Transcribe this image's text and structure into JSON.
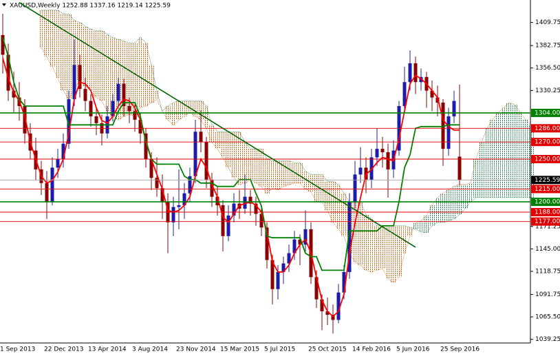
{
  "chart_data": {
    "type": "candlestick",
    "header": "XAUUSD,Weekly  1252.88 1337.16 1219.14 1225.59",
    "categories": [
      "1 Sep 2013",
      null,
      null,
      null,
      null,
      null,
      null,
      null,
      "22 Dec 2013",
      null,
      null,
      null,
      null,
      null,
      null,
      null,
      "13 Apr 2014",
      null,
      null,
      null,
      null,
      null,
      null,
      null,
      "3 Aug 2014",
      null,
      null,
      null,
      null,
      null,
      null,
      null,
      "23 Nov 2014",
      null,
      null,
      null,
      null,
      null,
      null,
      null,
      "15 Mar 2015",
      null,
      null,
      null,
      null,
      null,
      null,
      null,
      "5 Jul 2015",
      null,
      null,
      null,
      null,
      null,
      null,
      null,
      "25 Oct 2015",
      null,
      null,
      null,
      null,
      null,
      null,
      null,
      "14 Feb 2016",
      null,
      null,
      null,
      null,
      null,
      null,
      null,
      "5 Jun 2016",
      null,
      null,
      null,
      null,
      null,
      null,
      null,
      "25 Sep 2016",
      null,
      null,
      null,
      null,
      null,
      null,
      null,
      null,
      null,
      null,
      null,
      null,
      null,
      null,
      null,
      null
    ],
    "ohlc": [
      [
        1395,
        1420,
        1350,
        1372
      ],
      [
        1372,
        1385,
        1318,
        1330
      ],
      [
        1330,
        1352,
        1305,
        1322
      ],
      [
        1322,
        1340,
        1295,
        1312
      ],
      [
        1312,
        1320,
        1268,
        1280
      ],
      [
        1280,
        1292,
        1250,
        1260
      ],
      [
        1260,
        1275,
        1225,
        1238
      ],
      [
        1238,
        1248,
        1208,
        1222
      ],
      [
        1222,
        1236,
        1180,
        1200
      ],
      [
        1200,
        1252,
        1196,
        1240
      ],
      [
        1240,
        1262,
        1228,
        1250
      ],
      [
        1250,
        1280,
        1240,
        1268
      ],
      [
        1268,
        1330,
        1262,
        1320
      ],
      [
        1320,
        1390,
        1312,
        1360
      ],
      [
        1360,
        1372,
        1322,
        1332
      ],
      [
        1332,
        1345,
        1306,
        1318
      ],
      [
        1318,
        1326,
        1288,
        1300
      ],
      [
        1300,
        1310,
        1278,
        1292
      ],
      [
        1292,
        1302,
        1266,
        1280
      ],
      [
        1280,
        1312,
        1274,
        1300
      ],
      [
        1300,
        1326,
        1294,
        1318
      ],
      [
        1318,
        1345,
        1312,
        1338
      ],
      [
        1338,
        1344,
        1300,
        1312
      ],
      [
        1312,
        1322,
        1292,
        1306
      ],
      [
        1306,
        1314,
        1282,
        1296
      ],
      [
        1296,
        1304,
        1268,
        1280
      ],
      [
        1280,
        1286,
        1240,
        1250
      ],
      [
        1250,
        1258,
        1214,
        1228
      ],
      [
        1228,
        1252,
        1206,
        1216
      ],
      [
        1216,
        1232,
        1180,
        1200
      ],
      [
        1200,
        1210,
        1140,
        1176
      ],
      [
        1176,
        1206,
        1160,
        1194
      ],
      [
        1194,
        1238,
        1168,
        1196
      ],
      [
        1196,
        1222,
        1180,
        1210
      ],
      [
        1210,
        1240,
        1200,
        1230
      ],
      [
        1230,
        1296,
        1222,
        1282
      ],
      [
        1282,
        1307,
        1258,
        1270
      ],
      [
        1270,
        1276,
        1216,
        1226
      ],
      [
        1226,
        1234,
        1194,
        1206
      ],
      [
        1206,
        1218,
        1184,
        1196
      ],
      [
        1196,
        1202,
        1142,
        1160
      ],
      [
        1160,
        1196,
        1154,
        1184
      ],
      [
        1184,
        1210,
        1176,
        1198
      ],
      [
        1198,
        1214,
        1180,
        1192
      ],
      [
        1192,
        1232,
        1186,
        1206
      ],
      [
        1206,
        1214,
        1184,
        1198
      ],
      [
        1198,
        1206,
        1172,
        1186
      ],
      [
        1186,
        1194,
        1160,
        1170
      ],
      [
        1170,
        1176,
        1122,
        1132
      ],
      [
        1132,
        1138,
        1080,
        1098
      ],
      [
        1098,
        1126,
        1086,
        1118
      ],
      [
        1118,
        1136,
        1104,
        1128
      ],
      [
        1128,
        1150,
        1118,
        1140
      ],
      [
        1140,
        1166,
        1132,
        1156
      ],
      [
        1156,
        1162,
        1126,
        1150
      ],
      [
        1150,
        1190,
        1142,
        1168
      ],
      [
        1168,
        1176,
        1104,
        1112
      ],
      [
        1112,
        1120,
        1076,
        1086
      ],
      [
        1086,
        1092,
        1050,
        1072
      ],
      [
        1072,
        1088,
        1056,
        1068
      ],
      [
        1068,
        1080,
        1046,
        1062
      ],
      [
        1062,
        1104,
        1058,
        1094
      ],
      [
        1094,
        1126,
        1086,
        1118
      ],
      [
        1118,
        1210,
        1110,
        1200
      ],
      [
        1200,
        1248,
        1192,
        1232
      ],
      [
        1232,
        1264,
        1222,
        1240
      ],
      [
        1240,
        1252,
        1210,
        1226
      ],
      [
        1226,
        1262,
        1216,
        1252
      ],
      [
        1252,
        1286,
        1242,
        1262
      ],
      [
        1262,
        1276,
        1240,
        1258
      ],
      [
        1258,
        1268,
        1205,
        1238
      ],
      [
        1238,
        1272,
        1228,
        1260
      ],
      [
        1260,
        1318,
        1254,
        1312
      ],
      [
        1312,
        1358,
        1306,
        1340
      ],
      [
        1340,
        1377,
        1330,
        1362
      ],
      [
        1362,
        1370,
        1326,
        1340
      ],
      [
        1340,
        1356,
        1330,
        1346
      ],
      [
        1346,
        1352,
        1310,
        1330
      ],
      [
        1330,
        1342,
        1306,
        1322
      ],
      [
        1322,
        1336,
        1300,
        1316
      ],
      [
        1316,
        1320,
        1242,
        1262
      ],
      [
        1262,
        1310,
        1254,
        1300
      ],
      [
        1300,
        1330,
        1292,
        1318
      ],
      [
        1252.88,
        1337.16,
        1219.14,
        1225.59
      ],
      null,
      null,
      null,
      null,
      null,
      null,
      null,
      null,
      null,
      null,
      null,
      null,
      null
    ],
    "up_color": "#1c1ca8",
    "down_color": "#8b0000",
    "overlays": [
      {
        "color": "#ff0000",
        "values": [
          1368,
          1345,
          1328,
          1318,
          1300,
          1270,
          1250,
          1230,
          1222,
          1225,
          1235,
          1250,
          1280,
          1320,
          1340,
          1338,
          1330,
          1310,
          1295,
          1292,
          1300,
          1312,
          1320,
          1318,
          1310,
          1296,
          1272,
          1250,
          1232,
          1215,
          1190,
          1188,
          1190,
          1196,
          1206,
          1230,
          1250,
          1240,
          1220,
          1206,
          1182,
          1176,
          1186,
          1196,
          1198,
          1200,
          1196,
          1188,
          1165,
          1130,
          1118,
          1118,
          1126,
          1140,
          1150,
          1156,
          1140,
          1112,
          1085,
          1072,
          1066,
          1072,
          1092,
          1140,
          1175,
          1205,
          1232,
          1238,
          1246,
          1252,
          1250,
          1248,
          1274,
          1306,
          1338,
          1348,
          1344,
          1338,
          1330,
          1322,
          1296,
          1288,
          1284,
          1284,
          null,
          null,
          null,
          null,
          null,
          null,
          null,
          null,
          null,
          null,
          null,
          null,
          null
        ]
      },
      {
        "color": "#008000",
        "values": [
          1392,
          1370,
          1340,
          1320,
          1312,
          1312,
          1312,
          1312,
          1312,
          1312,
          1312,
          1312,
          1290,
          1290,
          1290,
          1290,
          1290,
          1290,
          1290,
          1290,
          1290,
          1306,
          1316,
          1316,
          1316,
          1300,
          1270,
          1250,
          1244,
          1244,
          1244,
          1244,
          1244,
          1230,
          1226,
          1226,
          1222,
          1222,
          1222,
          1218,
          1218,
          1218,
          1218,
          1226,
          1226,
          1226,
          1210,
          1195,
          1160,
          1158,
          1158,
          1158,
          1158,
          1158,
          1158,
          1140,
          1136,
          1136,
          1120,
          1120,
          1120,
          1120,
          1120,
          1166,
          1166,
          1166,
          1166,
          1166,
          1166,
          1172,
          1172,
          1172,
          1200,
          1240,
          1255,
          1286,
          1288,
          1288,
          1288,
          1288,
          1288,
          1290,
          1290,
          1290,
          null,
          null,
          null,
          null,
          null,
          null,
          null,
          null,
          null,
          null,
          null,
          null,
          null
        ]
      }
    ],
    "cloud": {
      "up_color": "#2e8b57",
      "down_color": "#d2691e",
      "span_a": [
        null,
        null,
        null,
        null,
        null,
        null,
        null,
        1380,
        1370,
        1358,
        1345,
        1330,
        1320,
        1332,
        1342,
        1335,
        1330,
        1322,
        1318,
        1306,
        1300,
        1296,
        1300,
        1302,
        1300,
        1310,
        1312,
        1316,
        1320,
        1306,
        1296,
        1290,
        1296,
        1300,
        1305,
        1300,
        1296,
        1286,
        1270,
        1262,
        1252,
        1240,
        1228,
        1220,
        1222,
        1226,
        1222,
        1218,
        1210,
        1216,
        1214,
        1218,
        1220,
        1222,
        1222,
        1215,
        1212,
        1200,
        1200,
        1190,
        1176,
        1168,
        1160,
        1140,
        1130,
        1126,
        1120,
        1118,
        1120,
        1122,
        1110,
        1106,
        1112,
        1140,
        1160,
        1175,
        1178,
        1184,
        1196,
        1205,
        1210,
        1214,
        1218,
        1220,
        1220,
        1222,
        1250,
        1270,
        1286,
        1296,
        1304,
        1310,
        1316,
        1314,
        1305,
        1296,
        1290
      ],
      "span_b": [
        null,
        null,
        null,
        null,
        null,
        null,
        null,
        1424,
        1424,
        1424,
        1424,
        1420,
        1420,
        1412,
        1410,
        1405,
        1402,
        1400,
        1400,
        1396,
        1392,
        1390,
        1388,
        1386,
        1386,
        1392,
        1386,
        1360,
        1330,
        1306,
        1312,
        1316,
        1318,
        1318,
        1318,
        1318,
        1318,
        1312,
        1290,
        1282,
        1282,
        1282,
        1282,
        1282,
        1270,
        1262,
        1262,
        1262,
        1250,
        1248,
        1248,
        1248,
        1248,
        1246,
        1246,
        1236,
        1232,
        1232,
        1232,
        1224,
        1224,
        1220,
        1210,
        1200,
        1200,
        1200,
        1185,
        1180,
        1172,
        1172,
        1172,
        1172,
        1172,
        1172,
        1170,
        1168,
        1165,
        1164,
        1172,
        1176,
        1176,
        1178,
        1180,
        1185,
        1192,
        1200,
        1205,
        1205,
        1205,
        1205,
        1205,
        1205,
        1205,
        1205,
        1205,
        1205,
        1205
      ]
    },
    "trendline": {
      "color": "#006400",
      "x": [
        3,
        75
      ],
      "values": [
        1433,
        1147
      ]
    },
    "levels": [
      {
        "value": 1304,
        "label": "1304.00",
        "color": "#008000"
      },
      {
        "value": 1286,
        "label": "1286.00",
        "color": "#e00000"
      },
      {
        "value": 1270,
        "label": "1270.00",
        "color": "#e00000"
      },
      {
        "value": 1250,
        "label": "1250.00",
        "color": "#e00000"
      },
      {
        "value": 1215,
        "label": "1215.00",
        "color": "#e00000"
      },
      {
        "value": 1200,
        "label": "1200.00",
        "color": "#008000"
      },
      {
        "value": 1188,
        "label": "1188.00",
        "color": "#e00000"
      },
      {
        "value": 1177,
        "label": "1177.00",
        "color": "#e00000"
      }
    ],
    "last_price": 1225.59,
    "ylim": [
      1035,
      1436
    ],
    "yticks": [
      1409.75,
      1382.75,
      {
        "value": 1356.5,
        "label": "1356.50"
      },
      1330.25,
      1171.25,
      {
        "value": 1145,
        "label": "1145.00"
      },
      1118.75,
      1091.75,
      {
        "value": 1065.5,
        "label": "1065.50"
      },
      1039.25
    ]
  }
}
